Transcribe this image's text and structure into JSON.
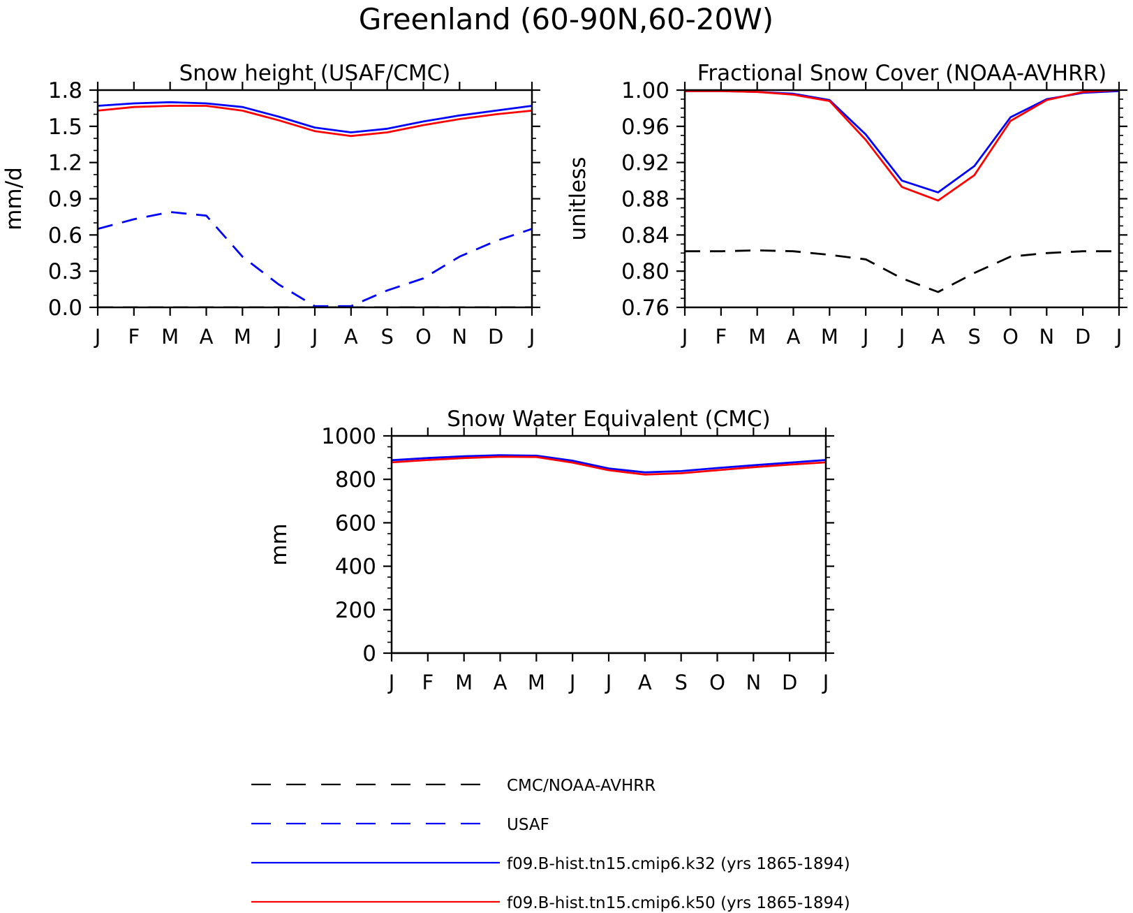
{
  "figure": {
    "title": "Greenland (60-90N,60-20W)"
  },
  "months": [
    "J",
    "F",
    "M",
    "A",
    "M",
    "J",
    "J",
    "A",
    "S",
    "O",
    "N",
    "D",
    "J"
  ],
  "colors": {
    "obs_cmc": "#000000",
    "obs_usaf": "#0000ff",
    "k32": "#0000ff",
    "k50": "#ff0000"
  },
  "legend": [
    {
      "label": "CMC/NOAA-AVHRR",
      "color": "#000000",
      "dashed": true
    },
    {
      "label": "USAF",
      "color": "#0000ff",
      "dashed": true
    },
    {
      "label": "f09.B-hist.tn15.cmip6.k32 (yrs 1865-1894)",
      "color": "#0000ff",
      "dashed": false
    },
    {
      "label": "f09.B-hist.tn15.cmip6.k50 (yrs 1865-1894)",
      "color": "#ff0000",
      "dashed": false
    }
  ],
  "chart_data": [
    {
      "type": "line",
      "title": "Snow height (USAF/CMC)",
      "ylabel": "mm/d",
      "ylim": [
        0.0,
        1.8
      ],
      "yticks": [
        "0.0",
        "0.3",
        "0.6",
        "0.9",
        "1.2",
        "1.5",
        "1.8"
      ],
      "series": [
        {
          "key": "obs_cmc",
          "dashed": true,
          "values": [
            0,
            0,
            0,
            0,
            0,
            0,
            0,
            0,
            0,
            0,
            0,
            0,
            0
          ]
        },
        {
          "key": "obs_usaf",
          "dashed": true,
          "values": [
            0.65,
            0.73,
            0.79,
            0.76,
            0.42,
            0.19,
            0.01,
            0.01,
            0.14,
            0.24,
            0.42,
            0.55,
            0.65
          ]
        },
        {
          "key": "k32",
          "dashed": false,
          "values": [
            1.67,
            1.69,
            1.7,
            1.69,
            1.66,
            1.58,
            1.49,
            1.45,
            1.48,
            1.54,
            1.59,
            1.63,
            1.67
          ]
        },
        {
          "key": "k50",
          "dashed": false,
          "values": [
            1.63,
            1.66,
            1.67,
            1.67,
            1.63,
            1.55,
            1.46,
            1.42,
            1.45,
            1.51,
            1.56,
            1.6,
            1.63
          ]
        }
      ]
    },
    {
      "type": "line",
      "title": "Fractional Snow Cover (NOAA-AVHRR)",
      "ylabel": "unitless",
      "ylim": [
        0.76,
        1.0
      ],
      "yticks": [
        "0.76",
        "0.80",
        "0.84",
        "0.88",
        "0.92",
        "0.96",
        "1.00"
      ],
      "series": [
        {
          "key": "obs_cmc",
          "dashed": true,
          "values": [
            0.822,
            0.822,
            0.823,
            0.822,
            0.818,
            0.813,
            0.792,
            0.777,
            0.798,
            0.816,
            0.82,
            0.822,
            0.822
          ]
        },
        {
          "key": "k32",
          "dashed": false,
          "values": [
            0.999,
            0.999,
            0.998,
            0.996,
            0.989,
            0.951,
            0.9,
            0.887,
            0.916,
            0.97,
            0.99,
            0.997,
            0.999
          ]
        },
        {
          "key": "k50",
          "dashed": false,
          "values": [
            0.999,
            0.999,
            0.998,
            0.995,
            0.988,
            0.945,
            0.893,
            0.878,
            0.906,
            0.966,
            0.989,
            0.998,
            1.0
          ]
        }
      ]
    },
    {
      "type": "line",
      "title": "Snow Water Equivalent (CMC)",
      "ylabel": "mm",
      "ylim": [
        0,
        1000
      ],
      "yticks": [
        "0",
        "200",
        "400",
        "600",
        "800",
        "1000"
      ],
      "series": [
        {
          "key": "obs_cmc",
          "dashed": false,
          "values": [
            0,
            0,
            0,
            0,
            0,
            0,
            0,
            0,
            0,
            0,
            0,
            0,
            0
          ]
        },
        {
          "key": "k32",
          "dashed": false,
          "values": [
            888,
            898,
            906,
            911,
            909,
            886,
            850,
            832,
            838,
            852,
            865,
            877,
            889
          ]
        },
        {
          "key": "k50",
          "dashed": false,
          "values": [
            878,
            889,
            898,
            904,
            903,
            877,
            842,
            822,
            828,
            842,
            856,
            868,
            878
          ]
        }
      ]
    }
  ]
}
